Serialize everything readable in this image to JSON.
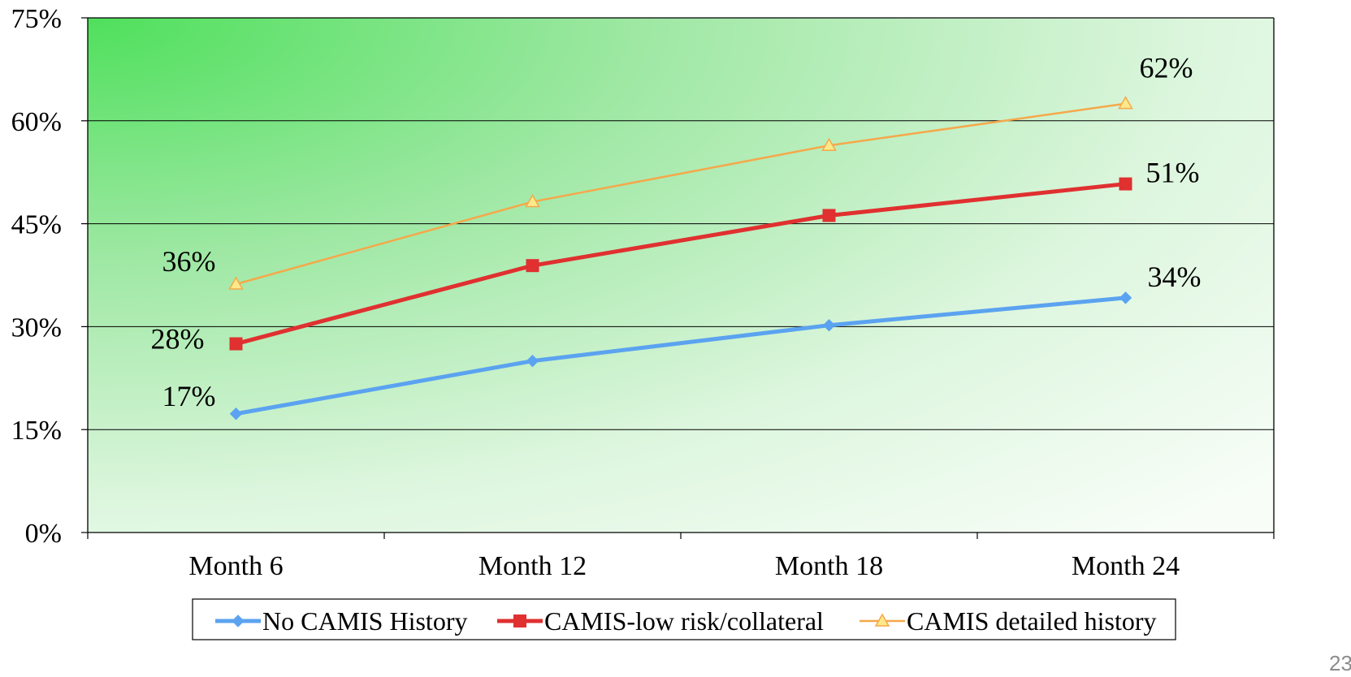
{
  "page_number": "23",
  "chart_data": {
    "type": "line",
    "title": "",
    "xlabel": "",
    "ylabel": "",
    "categories": [
      "Month 6",
      "Month 12",
      "Month 18",
      "Month 24"
    ],
    "y_ticks": [
      {
        "value": 0,
        "label": "0%"
      },
      {
        "value": 15,
        "label": "15%"
      },
      {
        "value": 30,
        "label": "30%"
      },
      {
        "value": 45,
        "label": "45%"
      },
      {
        "value": 60,
        "label": "60%"
      },
      {
        "value": 75,
        "label": "75%"
      }
    ],
    "ylim": [
      0,
      75
    ],
    "grid": true,
    "legend_position": "bottom",
    "series": [
      {
        "name": "No CAMIS History",
        "color": "#5ba3f0",
        "marker": "diamond",
        "values": [
          17.3,
          25,
          30.2,
          34.2
        ],
        "data_labels": [
          "17%",
          "",
          "",
          "34%"
        ]
      },
      {
        "name": "CAMIS-low risk/collateral",
        "color": "#e03030",
        "marker": "square",
        "values": [
          27.5,
          38.9,
          46.2,
          50.8
        ],
        "data_labels": [
          "28%",
          "",
          "",
          "51%"
        ]
      },
      {
        "name": "CAMIS detailed history",
        "color": "#f5a84a",
        "marker": "triangle",
        "values": [
          36.2,
          48.2,
          56.4,
          62.5
        ],
        "data_labels": [
          "36%",
          "",
          "",
          "62%"
        ]
      }
    ]
  }
}
